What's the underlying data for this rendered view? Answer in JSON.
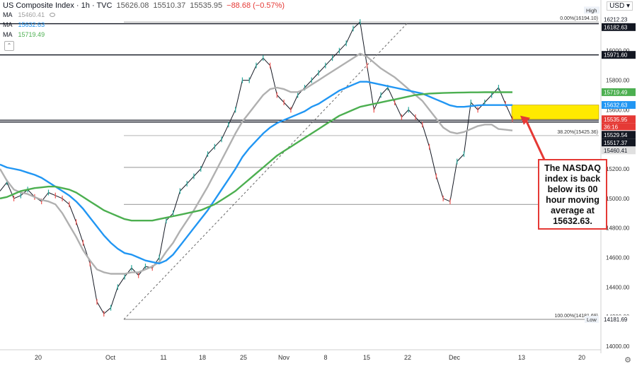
{
  "header": {
    "title": "US Composite Index · 1h · TVC",
    "o": "15626.08",
    "l": "15510.37",
    "c": "15535.95",
    "chg": "−88.68 (−0.57%)"
  },
  "ma_legend": [
    {
      "label": "MA",
      "value": "15460.41",
      "color": "#b0b0b0"
    },
    {
      "label": "MA",
      "value": "15632.63",
      "color": "#2196f3"
    },
    {
      "label": "MA",
      "value": "15719.49",
      "color": "#4caf50"
    }
  ],
  "currency": "USD",
  "annotation": "The NASDAQ index is back below its 00 hour moving average at 15632.63.",
  "chart_data": {
    "type": "line",
    "title": "",
    "xlabel": "",
    "ylabel": "",
    "ylim": [
      14000,
      16300
    ],
    "x_ticks": [
      "20",
      "Oct",
      "11",
      "18",
      "25",
      "Nov",
      "8",
      "15",
      "22",
      "Dec",
      "13",
      "20"
    ],
    "y_ticks": [
      14000,
      14200,
      14400,
      14600,
      14800,
      15000,
      15200,
      15400,
      15600,
      15800,
      16000,
      16200
    ],
    "y_tick_labels": [
      "14000.00",
      "14200.00",
      "14400.00",
      "14600.00",
      "14800.00",
      "15000.00",
      "15200.00",
      "15400.00",
      "15600.00",
      "15800.00",
      "16000.00",
      "16200.00"
    ],
    "series": [
      {
        "name": "",
        "color": "#131722",
        "role": "price",
        "values": [
          15050,
          15110,
          15000,
          15020,
          15060,
          15010,
          14980,
          15040,
          15020,
          15000,
          14960,
          14840,
          14700,
          14560,
          14300,
          14220,
          14260,
          14400,
          14470,
          14530,
          14480,
          14540,
          14530,
          14600,
          14850,
          14900,
          15050,
          15100,
          15150,
          15200,
          15300,
          15350,
          15400,
          15500,
          15600,
          15800,
          15800,
          15900,
          15950,
          15900,
          15700,
          15650,
          15600,
          15700,
          15750,
          15800,
          15850,
          15900,
          15950,
          16000,
          16050,
          16150,
          16194,
          15900,
          15600,
          15700,
          15750,
          15650,
          15550,
          15600,
          15550,
          15500,
          15350,
          15150,
          15000,
          14980,
          15250,
          15300,
          15650,
          15600,
          15650,
          15700,
          15750,
          15640,
          15536
        ]
      },
      {
        "name": "",
        "color": "#b0b0b0",
        "role": "ma",
        "values": [
          15200,
          15120,
          15060,
          15040,
          15030,
          15010,
          14990,
          14980,
          14960,
          14900,
          14820,
          14740,
          14650,
          14580,
          14520,
          14500,
          14490,
          14490,
          14490,
          14500,
          14500,
          14520,
          14540,
          14570,
          14640,
          14700,
          14780,
          14850,
          14920,
          15000,
          15080,
          15170,
          15260,
          15350,
          15440,
          15520,
          15580,
          15640,
          15700,
          15740,
          15750,
          15740,
          15720,
          15720,
          15740,
          15770,
          15800,
          15830,
          15860,
          15890,
          15920,
          15950,
          15980,
          15960,
          15920,
          15880,
          15850,
          15820,
          15780,
          15740,
          15700,
          15660,
          15600,
          15540,
          15480,
          15450,
          15440,
          15450,
          15470,
          15490,
          15500,
          15500,
          15470,
          15465,
          15460
        ]
      },
      {
        "name": "",
        "color": "#2196f3",
        "role": "ma",
        "values": [
          15230,
          15210,
          15200,
          15190,
          15175,
          15160,
          15140,
          15110,
          15080,
          15050,
          15020,
          14980,
          14930,
          14870,
          14810,
          14750,
          14700,
          14660,
          14630,
          14620,
          14600,
          14580,
          14570,
          14560,
          14580,
          14620,
          14680,
          14740,
          14800,
          14860,
          14920,
          14990,
          15060,
          15130,
          15200,
          15280,
          15340,
          15390,
          15440,
          15480,
          15510,
          15530,
          15550,
          15570,
          15590,
          15620,
          15640,
          15670,
          15700,
          15730,
          15750,
          15770,
          15790,
          15790,
          15780,
          15770,
          15760,
          15750,
          15740,
          15730,
          15720,
          15710,
          15690,
          15670,
          15650,
          15630,
          15620,
          15620,
          15625,
          15630,
          15632,
          15632,
          15632,
          15632,
          15632
        ]
      },
      {
        "name": "",
        "color": "#4caf50",
        "role": "ma",
        "values": [
          15000,
          15010,
          15030,
          15050,
          15060,
          15070,
          15075,
          15080,
          15080,
          15070,
          15060,
          15040,
          15010,
          14980,
          14950,
          14920,
          14900,
          14880,
          14860,
          14850,
          14850,
          14850,
          14850,
          14860,
          14870,
          14880,
          14890,
          14900,
          14910,
          14920,
          14940,
          14960,
          14990,
          15020,
          15050,
          15090,
          15130,
          15170,
          15210,
          15250,
          15290,
          15320,
          15350,
          15380,
          15410,
          15440,
          15470,
          15500,
          15530,
          15560,
          15580,
          15600,
          15620,
          15630,
          15640,
          15650,
          15660,
          15670,
          15680,
          15690,
          15700,
          15705,
          15710,
          15712,
          15714,
          15715,
          15716,
          15717,
          15718,
          15718,
          15719,
          15719,
          15719,
          15719,
          15719
        ]
      }
    ],
    "horizontal_levels": [
      {
        "price": 16182.63,
        "label": "16182.63",
        "style": "solid-black"
      },
      {
        "price": 15971.6,
        "label": "15971.60",
        "style": "solid-black"
      },
      {
        "price": 15529.54,
        "label": "15529.54",
        "style": "solid-black"
      },
      {
        "price": 15517.37,
        "label": "15517.37",
        "style": "solid-black"
      },
      {
        "price": 15210,
        "label": "",
        "style": "thin-gray"
      },
      {
        "price": 14960,
        "label": "",
        "style": "thin-gray"
      },
      {
        "price": 14181.69,
        "label": "14181.69",
        "style": "solid-gray"
      }
    ],
    "fib_levels": [
      {
        "price": 16194.1,
        "label": "0.00%(16194.10)"
      },
      {
        "price": 15425.36,
        "label": "38.20%(15425.36)"
      },
      {
        "price": 14181.69,
        "label": "100.00%(14181.69)"
      }
    ],
    "price_tags": [
      {
        "price": 16212.23,
        "label": "16212.23",
        "bg": "#ffffff",
        "fg": "#131722"
      },
      {
        "price": 16182.63,
        "label": "16182.63",
        "bg": "#131722",
        "fg": "#ffffff"
      },
      {
        "price": 15971.6,
        "label": "15971.60",
        "bg": "#131722",
        "fg": "#ffffff"
      },
      {
        "price": 15719.49,
        "label": "15719.49",
        "bg": "#4caf50",
        "fg": "#ffffff"
      },
      {
        "price": 15632.63,
        "label": "15632.63",
        "bg": "#2196f3",
        "fg": "#ffffff"
      },
      {
        "price": 15535.95,
        "label": "15535.95",
        "bg": "#e53935",
        "fg": "#ffffff"
      },
      {
        "price": 15529.54,
        "label": "15529.54",
        "bg": "#131722",
        "fg": "#ffffff"
      },
      {
        "price": 15517.37,
        "label": "15517.37",
        "bg": "#131722",
        "fg": "#ffffff"
      },
      {
        "price": 15460.41,
        "label": "15460.41",
        "bg": "#e0e0e0",
        "fg": "#131722"
      },
      {
        "price": 14181.69,
        "label": "14181.69",
        "bg": "#ffffff",
        "fg": "#131722"
      }
    ],
    "countdown": "36:16",
    "high_label": "High",
    "low_label": "Low",
    "highlight_zone": {
      "from": 15535.95,
      "to": 15632.63,
      "color": "#ffea00"
    },
    "grid": false,
    "colors": {
      "up": "#26a69a",
      "down": "#ef5350",
      "annotation": "#e53935"
    }
  }
}
